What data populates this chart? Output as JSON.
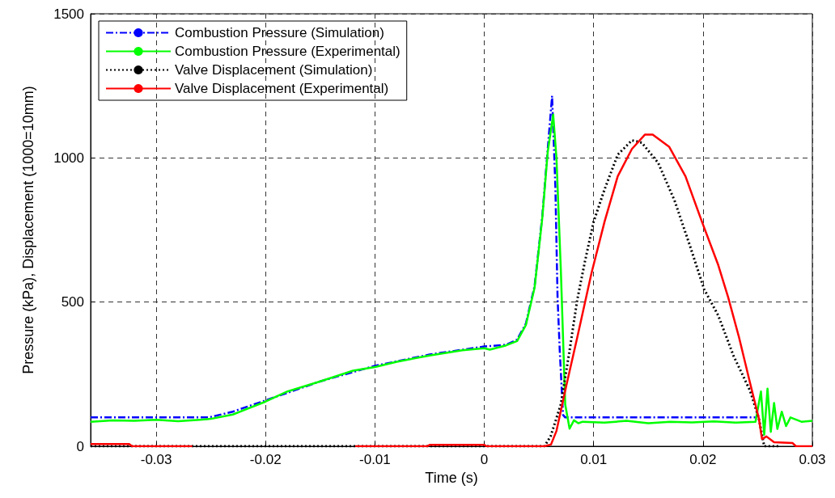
{
  "chart_data": {
    "type": "line",
    "xlabel": "Time (s)",
    "ylabel": "Pressure (kPa), Displacement (1000=10mm)",
    "xlim": [
      -0.036,
      0.03
    ],
    "xticks": [
      -0.03,
      -0.02,
      -0.01,
      0,
      0.01,
      0.02,
      0.03
    ],
    "ylim": [
      0,
      1500
    ],
    "yticks": [
      0,
      500,
      1000,
      1500
    ],
    "grid": true,
    "legend": "top left",
    "marker": "none",
    "series": [
      {
        "name": "Combustion Pressure (Simulation)",
        "color": "#0000ff",
        "line_style": "dashed",
        "x": [
          -0.036,
          -0.0252,
          -0.023,
          -0.02,
          -0.015,
          -0.01,
          -0.005,
          0,
          0.002,
          0.003,
          0.0038,
          0.0046,
          0.0053,
          0.0058,
          0.0062,
          0.0065,
          0.0067,
          0.0069,
          0.0072,
          0.0074,
          0.0248
        ],
        "values": [
          100,
          100,
          120,
          159,
          225,
          279,
          318,
          346,
          352,
          370,
          425,
          556,
          796,
          1030,
          1215,
          900,
          517,
          332,
          109,
          100,
          100
        ]
      },
      {
        "name": "Combustion Pressure (Experimental)",
        "color": "#00ff00",
        "line_style": "solid",
        "x": [
          -0.036,
          -0.034,
          -0.032,
          -0.03,
          -0.028,
          -0.026,
          -0.025,
          -0.023,
          -0.02,
          -0.018,
          -0.015,
          -0.012,
          -0.01,
          -0.008,
          -0.005,
          -0.002,
          0,
          0.0005,
          0.002,
          0.003,
          0.0038,
          0.0046,
          0.0053,
          0.0058,
          0.0063,
          0.0066,
          0.007,
          0.0074,
          0.0078,
          0.0082,
          0.0086,
          0.009,
          0.011,
          0.013,
          0.015,
          0.017,
          0.019,
          0.021,
          0.023,
          0.0248,
          0.0253,
          0.0256,
          0.0259,
          0.0262,
          0.0265,
          0.0268,
          0.0272,
          0.0276,
          0.028,
          0.029,
          0.03
        ],
        "values": [
          85,
          90,
          88,
          92,
          87,
          92,
          95,
          110,
          155,
          190,
          225,
          262,
          275,
          293,
          315,
          333,
          340,
          335,
          350,
          365,
          420,
          550,
          790,
          1020,
          1150,
          1000,
          612,
          145,
          61,
          90,
          80,
          85,
          82,
          88,
          80,
          85,
          83,
          86,
          82,
          85,
          190,
          40,
          200,
          50,
          150,
          60,
          120,
          70,
          100,
          85,
          88
        ]
      },
      {
        "name": "Valve Displacement (Simulation)",
        "color": "#000000",
        "line_style": "dotted",
        "x": [
          -0.036,
          0.0055,
          0.00606,
          0.007,
          0.0078,
          0.0085,
          0.0092,
          0.01,
          0.011,
          0.0122,
          0.0135,
          0.0144,
          0.0159,
          0.0174,
          0.0188,
          0.0201,
          0.0214,
          0.0228,
          0.0243,
          0.0251,
          0.0256,
          0.027
        ],
        "values": [
          0,
          0,
          34,
          145,
          332,
          508,
          640,
          779,
          891,
          1011,
          1061,
          1053,
          983,
          852,
          696,
          545,
          453,
          313,
          193,
          98,
          0,
          0
        ]
      },
      {
        "name": "Valve Displacement (Experimental)",
        "color": "#ff0000",
        "line_style": "solid",
        "x": [
          -0.036,
          -0.0325,
          -0.0322,
          -0.0267,
          null,
          -0.0118,
          -0.0052,
          -0.005,
          0,
          0.0002,
          0.0055,
          0.0061,
          0.0066,
          0.0075,
          0.0085,
          0.0098,
          0.011,
          0.0122,
          0.0135,
          0.0147,
          0.0154,
          0.0169,
          0.0184,
          0.0199,
          0.0214,
          0.0223,
          0.0233,
          0.0243,
          0.0251,
          0.0254,
          0.0258,
          0.0265,
          0.0282,
          0.0285,
          0.03
        ],
        "values": [
          8,
          8,
          0,
          0,
          null,
          0,
          0,
          5,
          5,
          0,
          0,
          6,
          53,
          210,
          377,
          600,
          779,
          936,
          1031,
          1081,
          1081,
          1039,
          936,
          779,
          628,
          517,
          377,
          220,
          98,
          25,
          34,
          14,
          11,
          0,
          0
        ]
      }
    ]
  }
}
